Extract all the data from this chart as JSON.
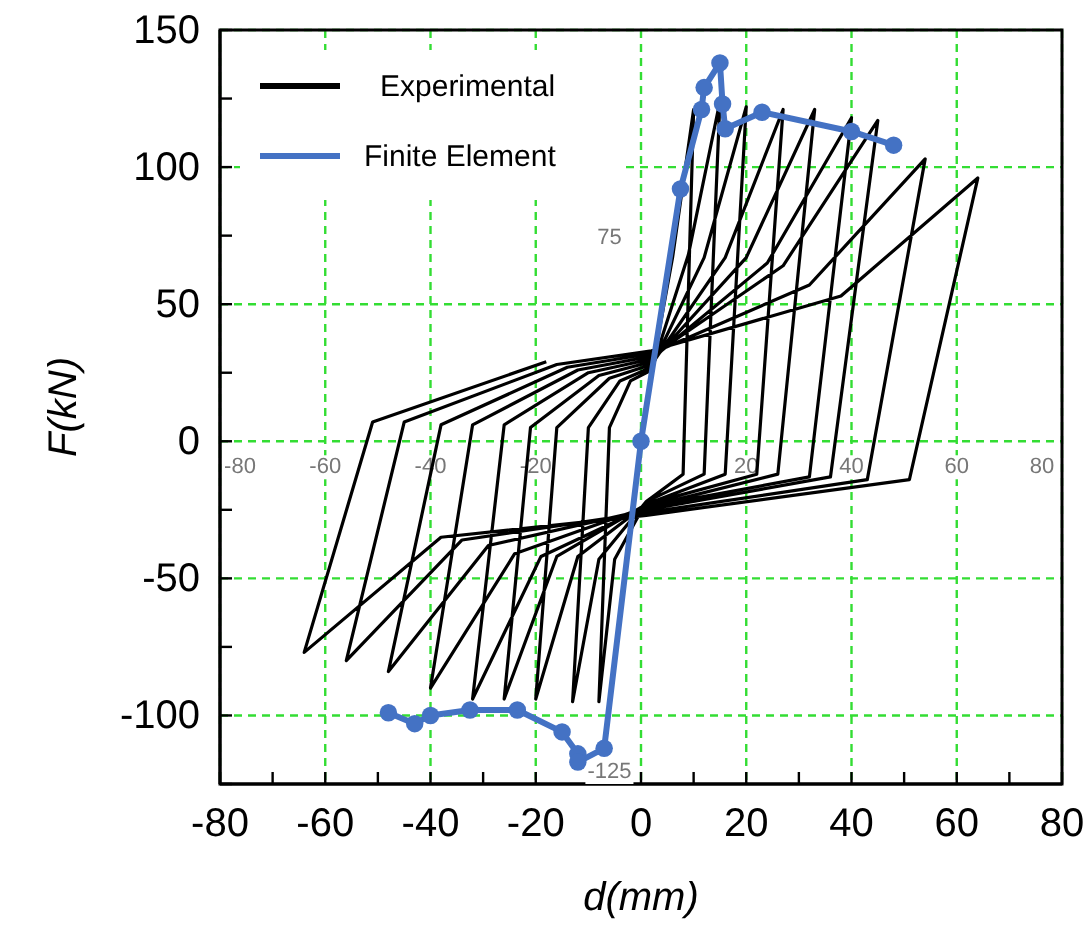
{
  "chart_data": {
    "type": "line",
    "xlabel": "d(mm)",
    "ylabel": "F(kN)",
    "xlim": [
      -80,
      80
    ],
    "ylim": [
      -125,
      150
    ],
    "xticks": [
      -80,
      {
        "value": -70,
        "label": null
      },
      -60,
      {
        "value": -50,
        "label": null
      },
      -40,
      {
        "value": -30,
        "label": null
      },
      -20,
      {
        "value": -10,
        "label": null
      },
      0,
      {
        "value": 10,
        "label": null
      },
      20,
      {
        "value": 30,
        "label": null
      },
      40,
      {
        "value": 50,
        "label": null
      },
      60,
      {
        "value": 70,
        "label": null
      },
      80
    ],
    "yticks": [
      {
        "value": -125,
        "label": null
      },
      -100,
      {
        "value": -75,
        "label": null
      },
      -50,
      {
        "value": -25,
        "label": null
      },
      0,
      {
        "value": 25,
        "label": null
      },
      50,
      {
        "value": 75,
        "label": null
      },
      100,
      {
        "value": 125,
        "label": null
      },
      150
    ],
    "grid": true,
    "legend": "top left",
    "x2lim": [
      -80,
      80
    ],
    "x2ticks": [
      -80,
      -60,
      -40,
      -20,
      20,
      40,
      60,
      80
    ],
    "y2lim": [
      -125,
      150
    ],
    "y2ticks": [
      -125,
      75
    ],
    "series": [
      {
        "name": "Experimental",
        "color": "#000000",
        "marker": "none",
        "x": [
          0,
          2,
          6,
          10,
          8,
          1,
          -5,
          -8,
          -6,
          -2,
          2,
          9,
          15,
          12,
          1,
          -8,
          -13,
          -10,
          -4,
          2,
          12,
          20,
          16,
          1,
          -12,
          -20,
          -16,
          -6,
          2,
          16,
          27,
          22,
          1,
          -16,
          -26,
          -21,
          -8,
          2,
          20,
          33,
          26,
          1,
          -19,
          -32,
          -26,
          -10,
          2,
          24,
          40,
          32,
          1,
          -24,
          -40,
          -32,
          -12,
          2,
          27,
          45,
          36,
          1,
          -29,
          -48,
          -38,
          -14,
          2,
          32,
          54,
          43,
          1,
          -34,
          -56,
          -45,
          -16,
          2,
          38,
          64,
          51,
          1,
          -38,
          -64,
          -51,
          -18
        ],
        "values": [
          0,
          25,
          67,
          121,
          -12,
          -22,
          -43,
          -95,
          5,
          22,
          26,
          68,
          124,
          -12,
          -22,
          -43,
          -95,
          5,
          22,
          27,
          67,
          122,
          -12,
          -23,
          -42,
          -94,
          5,
          23,
          28,
          67,
          121,
          -12,
          -23,
          -42,
          -94,
          5,
          24,
          29,
          67,
          121,
          -12,
          -24,
          -42,
          -94,
          6,
          25,
          30,
          65,
          118,
          -13,
          -24,
          -41,
          -90,
          6,
          26,
          31,
          64,
          117,
          -13,
          -25,
          -38,
          -84,
          6,
          27,
          32,
          57,
          103,
          -14,
          -26,
          -36,
          -80,
          7,
          28,
          33,
          53,
          96,
          -14,
          -27,
          -35,
          -77,
          7,
          29
        ]
      },
      {
        "name": "Finite Element",
        "color": "#4472c4",
        "marker": "circle",
        "x": [
          -48,
          -43,
          -40,
          -32.5,
          -23.5,
          -15,
          -12,
          -12,
          -7,
          0,
          7.5,
          11.5,
          12,
          15,
          15.5,
          16,
          23,
          40,
          48
        ],
        "values": [
          -99,
          -103,
          -100,
          -98,
          -98,
          -106,
          -114,
          -117,
          -112,
          0,
          92,
          121,
          129,
          138,
          123,
          114,
          120,
          113,
          108
        ]
      }
    ]
  }
}
